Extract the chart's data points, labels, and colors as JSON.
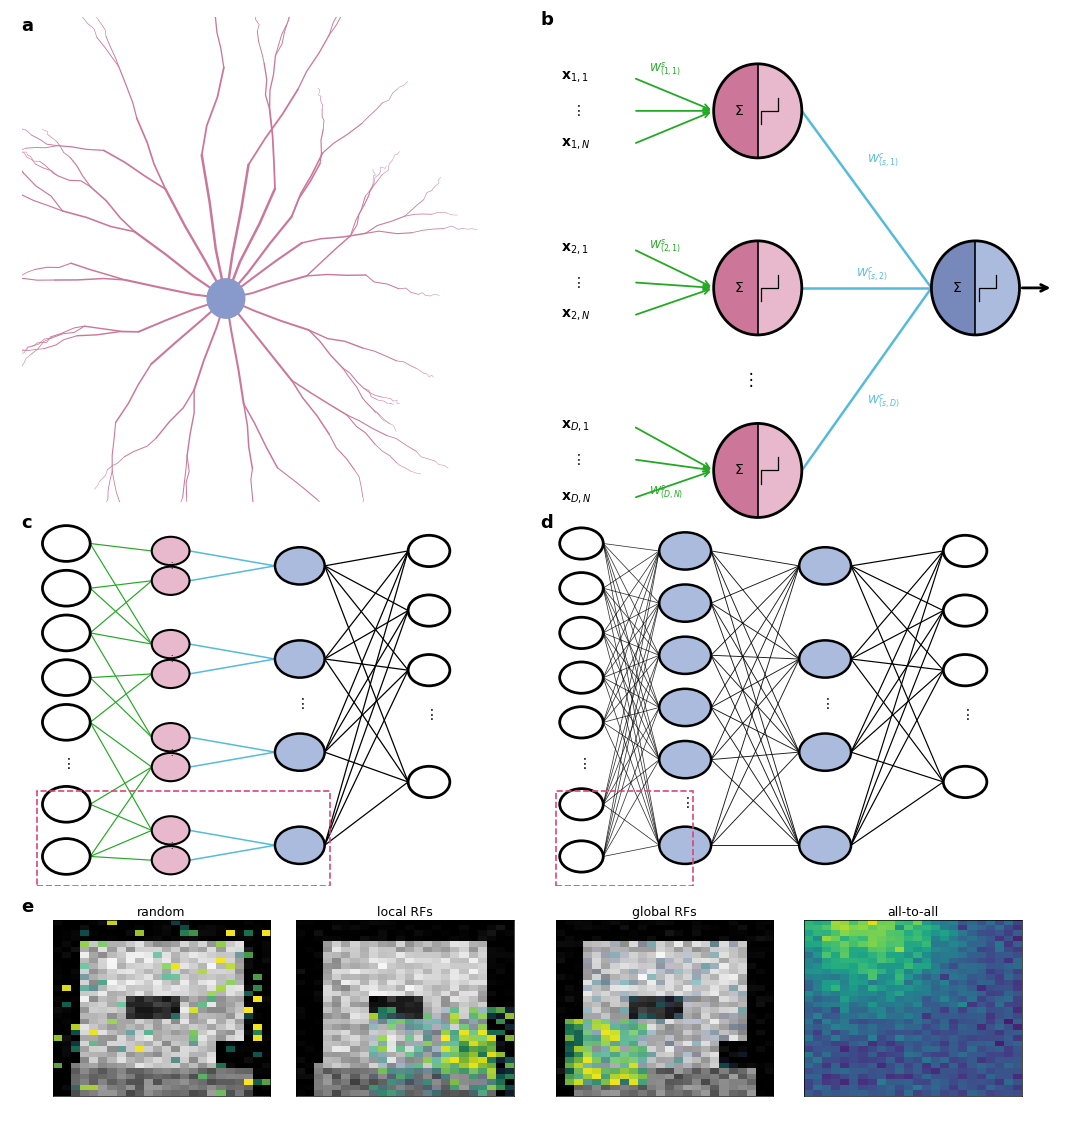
{
  "panel_labels": [
    "a",
    "b",
    "c",
    "d",
    "e"
  ],
  "neuron_pink_left": "#CC7799",
  "neuron_pink_right": "#E8B8CC",
  "neuron_blue_left": "#7788BB",
  "neuron_blue_right": "#AABBDD",
  "neuron_soma_color": "#8899CC",
  "node_white": "#FFFFFF",
  "green_color": "#22AA22",
  "blue_conn_color": "#55BBDD",
  "pink_box_color": "#DD4477",
  "bg_color": "#FFFFFF",
  "label_fontsize": 13,
  "input_label_fontsize": 10,
  "weight_label_fontsize": 8
}
